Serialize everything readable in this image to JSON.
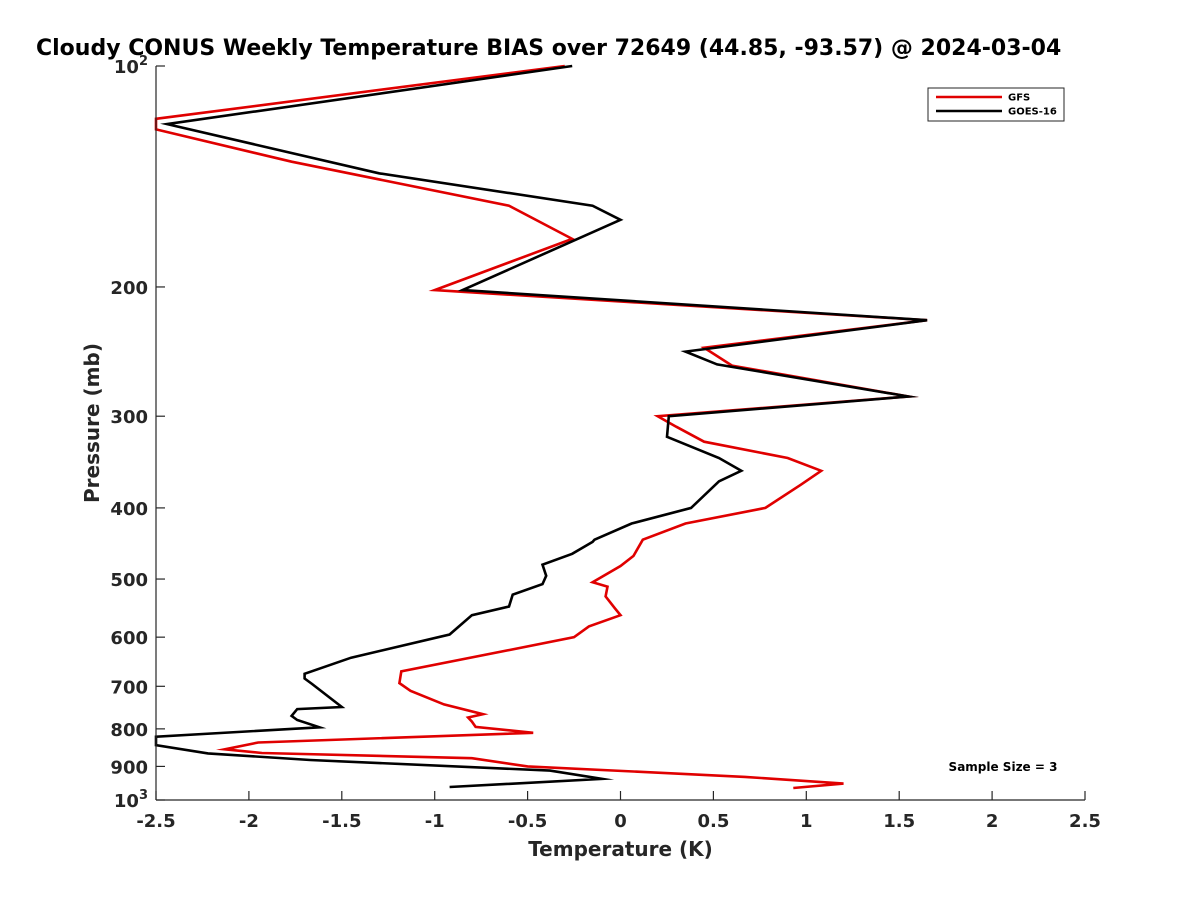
{
  "chart_data": {
    "type": "line",
    "title": "Cloudy CONUS Weekly Temperature BIAS over 72649 (44.85, -93.57) @ 2024-03-04",
    "xlabel": "Temperature (K)",
    "ylabel": "Pressure (mb)",
    "xlim": [
      -2.5,
      2.5
    ],
    "ylim": [
      100,
      1000
    ],
    "y_scale": "log",
    "y_reversed": true,
    "grid": false,
    "legend_position": "top-right",
    "x_ticks": [
      {
        "value": -2.5,
        "label": "-2.5"
      },
      {
        "value": -2,
        "label": "-2"
      },
      {
        "value": -1.5,
        "label": "-1.5"
      },
      {
        "value": -1,
        "label": "-1"
      },
      {
        "value": -0.5,
        "label": "-0.5"
      },
      {
        "value": 0,
        "label": "0"
      },
      {
        "value": 0.5,
        "label": "0.5"
      },
      {
        "value": 1,
        "label": "1"
      },
      {
        "value": 1.5,
        "label": "1.5"
      },
      {
        "value": 2,
        "label": "2"
      },
      {
        "value": 2.5,
        "label": "2.5"
      }
    ],
    "y_ticks": [
      {
        "value": 100,
        "base": "10",
        "exp": "2"
      },
      {
        "value": 200,
        "base": "200",
        "exp": ""
      },
      {
        "value": 300,
        "base": "300",
        "exp": ""
      },
      {
        "value": 400,
        "base": "400",
        "exp": ""
      },
      {
        "value": 500,
        "base": "500",
        "exp": ""
      },
      {
        "value": 600,
        "base": "600",
        "exp": ""
      },
      {
        "value": 700,
        "base": "700",
        "exp": ""
      },
      {
        "value": 800,
        "base": "800",
        "exp": ""
      },
      {
        "value": 900,
        "base": "900",
        "exp": ""
      },
      {
        "value": 1000,
        "base": "10",
        "exp": "3"
      }
    ],
    "annotation": "Sample Size = 3",
    "series": [
      {
        "name": "GFS",
        "color": "#e00000",
        "x": [
          -0.3,
          -2.5,
          -2.5,
          -1.77,
          -0.6,
          -0.26,
          -1.0,
          1.65,
          0.45,
          0.6,
          1.55,
          0.2,
          0.3,
          0.45,
          0.9,
          1.08,
          0.97,
          0.78,
          0.35,
          0.12,
          0.07,
          0.0,
          -0.15,
          -0.07,
          -0.08,
          -0.03,
          0.0,
          -0.17,
          -0.25,
          -1.18,
          -1.19,
          -1.13,
          -0.95,
          -0.74,
          -0.82,
          -0.8,
          -0.78,
          -0.47,
          -1.95,
          -2.13,
          -1.93,
          -0.8,
          -0.5,
          0.67,
          1.2,
          0.93
        ],
        "y": [
          100,
          118,
          122,
          135,
          155,
          172,
          202,
          222,
          242,
          256,
          282,
          300,
          310,
          325,
          342,
          356,
          372,
          400,
          420,
          442,
          465,
          480,
          505,
          512,
          528,
          548,
          560,
          580,
          600,
          668,
          693,
          710,
          741,
          764,
          772,
          782,
          795,
          810,
          835,
          853,
          863,
          877,
          900,
          930,
          950,
          963
        ]
      },
      {
        "name": "GOES-16",
        "color": "#000000",
        "x": [
          -0.26,
          -2.44,
          -1.3,
          -0.15,
          0.0,
          -0.85,
          1.65,
          0.35,
          0.52,
          1.55,
          0.26,
          0.25,
          0.53,
          0.65,
          0.53,
          0.38,
          0.06,
          -0.14,
          -0.15,
          -0.26,
          -0.42,
          -0.4,
          -0.42,
          -0.58,
          -0.6,
          -0.8,
          -0.92,
          -1.45,
          -1.7,
          -1.7,
          -1.66,
          -1.5,
          -1.74,
          -1.77,
          -1.74,
          -1.62,
          -2.5,
          -2.5,
          -2.22,
          -1.67,
          -0.38,
          -0.1,
          -0.92
        ],
        "y": [
          100,
          120,
          140,
          155,
          162,
          202,
          222,
          245,
          255,
          282,
          300,
          320,
          342,
          356,
          368,
          400,
          420,
          442,
          445,
          462,
          478,
          495,
          508,
          525,
          545,
          560,
          595,
          640,
          673,
          683,
          695,
          747,
          752,
          768,
          778,
          796,
          820,
          842,
          864,
          882,
          912,
          936,
          960
        ]
      }
    ]
  }
}
